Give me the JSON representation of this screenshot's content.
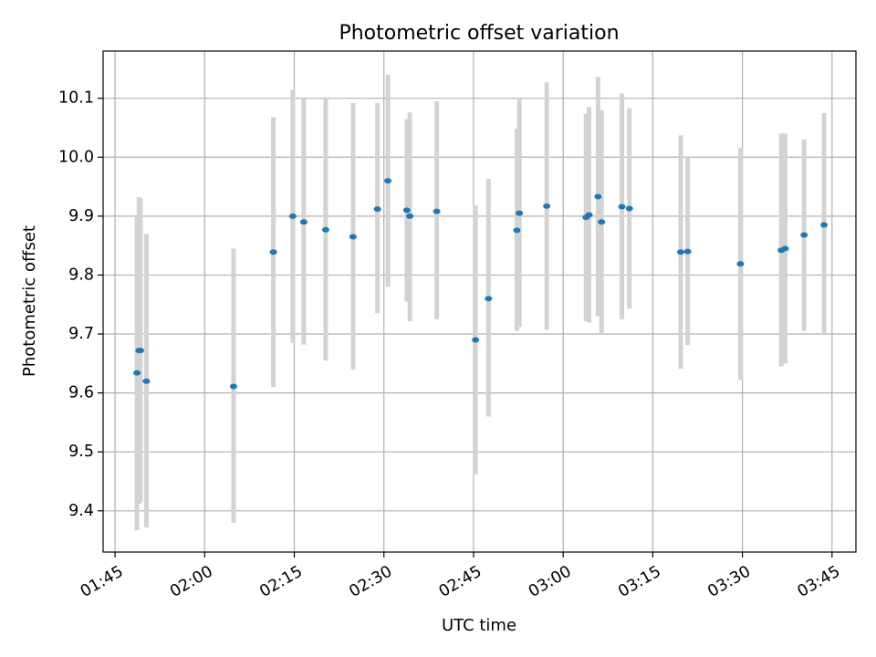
{
  "chart_data": {
    "type": "scatter",
    "title": "Photometric offset variation",
    "xlabel": "UTC time",
    "ylabel": "Photometric offset",
    "xlim": [
      "01:43",
      "03:49"
    ],
    "ylim": [
      9.33,
      10.18
    ],
    "x_ticks": [
      "01:45",
      "02:00",
      "02:15",
      "02:30",
      "02:45",
      "03:00",
      "03:15",
      "03:30",
      "03:45"
    ],
    "y_ticks": [
      9.4,
      9.5,
      9.6,
      9.7,
      9.8,
      9.9,
      10.0,
      10.1
    ],
    "y_tick_labels": [
      "9.4",
      "9.5",
      "9.6",
      "9.7",
      "9.8",
      "9.9",
      "10.0",
      "10.1"
    ],
    "grid": true,
    "point_color": "#1f77b4",
    "errorbar_color": "#d3d3d3",
    "points": [
      {
        "t": "01:48:40",
        "y": 9.634,
        "lo": 9.367,
        "hi": 9.9
      },
      {
        "t": "01:49:00",
        "y": 9.672,
        "lo": 9.412,
        "hi": 9.932
      },
      {
        "t": "01:49:15",
        "y": 9.672,
        "lo": 9.415,
        "hi": 9.93
      },
      {
        "t": "01:50:15",
        "y": 9.62,
        "lo": 9.372,
        "hi": 9.87
      },
      {
        "t": "02:04:50",
        "y": 9.611,
        "lo": 9.38,
        "hi": 9.845
      },
      {
        "t": "02:11:30",
        "y": 9.839,
        "lo": 9.61,
        "hi": 10.068
      },
      {
        "t": "02:14:45",
        "y": 9.9,
        "lo": 9.685,
        "hi": 10.114
      },
      {
        "t": "02:16:35",
        "y": 9.89,
        "lo": 9.682,
        "hi": 10.1
      },
      {
        "t": "02:20:15",
        "y": 9.877,
        "lo": 9.655,
        "hi": 10.1
      },
      {
        "t": "02:24:50",
        "y": 9.865,
        "lo": 9.64,
        "hi": 10.092
      },
      {
        "t": "02:28:55",
        "y": 9.912,
        "lo": 9.735,
        "hi": 10.092
      },
      {
        "t": "02:30:40",
        "y": 9.96,
        "lo": 9.78,
        "hi": 10.14
      },
      {
        "t": "02:33:50",
        "y": 9.91,
        "lo": 9.755,
        "hi": 10.065
      },
      {
        "t": "02:34:20",
        "y": 9.9,
        "lo": 9.722,
        "hi": 10.076
      },
      {
        "t": "02:38:50",
        "y": 9.908,
        "lo": 9.725,
        "hi": 10.095
      },
      {
        "t": "02:45:20",
        "y": 9.69,
        "lo": 9.462,
        "hi": 9.918
      },
      {
        "t": "02:47:30",
        "y": 9.76,
        "lo": 9.56,
        "hi": 9.963
      },
      {
        "t": "02:52:15",
        "y": 9.876,
        "lo": 9.705,
        "hi": 10.048
      },
      {
        "t": "02:52:40",
        "y": 9.905,
        "lo": 9.712,
        "hi": 10.1
      },
      {
        "t": "02:57:15",
        "y": 9.917,
        "lo": 9.707,
        "hi": 10.127
      },
      {
        "t": "03:03:50",
        "y": 9.898,
        "lo": 9.722,
        "hi": 10.074
      },
      {
        "t": "03:04:20",
        "y": 9.902,
        "lo": 9.719,
        "hi": 10.085
      },
      {
        "t": "03:05:50",
        "y": 9.933,
        "lo": 9.73,
        "hi": 10.136
      },
      {
        "t": "03:06:25",
        "y": 9.89,
        "lo": 9.7,
        "hi": 10.08
      },
      {
        "t": "03:09:50",
        "y": 9.916,
        "lo": 9.725,
        "hi": 10.108
      },
      {
        "t": "03:11:05",
        "y": 9.913,
        "lo": 9.743,
        "hi": 10.083
      },
      {
        "t": "03:19:40",
        "y": 9.839,
        "lo": 9.641,
        "hi": 10.037
      },
      {
        "t": "03:20:50",
        "y": 9.84,
        "lo": 9.681,
        "hi": 10.0
      },
      {
        "t": "03:29:40",
        "y": 9.819,
        "lo": 9.622,
        "hi": 10.016
      },
      {
        "t": "03:36:30",
        "y": 9.842,
        "lo": 9.645,
        "hi": 10.04
      },
      {
        "t": "03:37:10",
        "y": 9.845,
        "lo": 9.65,
        "hi": 10.04
      },
      {
        "t": "03:40:20",
        "y": 9.868,
        "lo": 9.705,
        "hi": 10.03
      },
      {
        "t": "03:43:40",
        "y": 9.885,
        "lo": 9.7,
        "hi": 10.075
      }
    ]
  }
}
